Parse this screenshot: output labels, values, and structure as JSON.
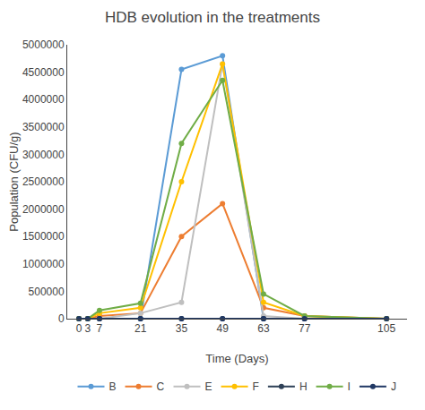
{
  "chart_data": {
    "type": "line",
    "title": "HDB evolution in the treatments",
    "xlabel": "Time (Days)",
    "ylabel": "Population (CFU/g)",
    "x": [
      0,
      3,
      7,
      21,
      35,
      49,
      63,
      77,
      105
    ],
    "series": [
      {
        "name": "B",
        "color": "#5B9BD5",
        "marker": "circle",
        "values": [
          0,
          0,
          0,
          0,
          4550000,
          4800000,
          0,
          0,
          0
        ]
      },
      {
        "name": "C",
        "color": "#ED7D31",
        "marker": "circle",
        "values": [
          0,
          0,
          50000,
          100000,
          1500000,
          2100000,
          200000,
          50000,
          0
        ]
      },
      {
        "name": "E",
        "color": "#BFBFBF",
        "marker": "circle",
        "values": [
          0,
          0,
          0,
          100000,
          300000,
          4650000,
          50000,
          0,
          0
        ]
      },
      {
        "name": "F",
        "color": "#FFC000",
        "marker": "circle",
        "values": [
          0,
          0,
          100000,
          200000,
          2500000,
          4650000,
          300000,
          50000,
          0
        ]
      },
      {
        "name": "H",
        "color": "#2E4057",
        "marker": "circle",
        "values": [
          0,
          0,
          0,
          0,
          0,
          0,
          0,
          0,
          0
        ]
      },
      {
        "name": "I",
        "color": "#70AD47",
        "marker": "circle",
        "values": [
          0,
          0,
          150000,
          280000,
          3200000,
          4350000,
          450000,
          50000,
          0
        ]
      },
      {
        "name": "J",
        "color": "#203864",
        "marker": "circle",
        "values": [
          0,
          0,
          0,
          0,
          0,
          0,
          0,
          0,
          0
        ]
      }
    ],
    "xlim": [
      -4,
      112
    ],
    "xticks": [
      0,
      3,
      7,
      21,
      35,
      49,
      63,
      77,
      105
    ],
    "ylim": [
      0,
      5000000
    ],
    "yticks": [
      0,
      500000,
      1000000,
      1500000,
      2000000,
      2500000,
      3000000,
      3500000,
      4000000,
      4500000,
      5000000
    ],
    "grid": false,
    "legend": "bottom"
  }
}
